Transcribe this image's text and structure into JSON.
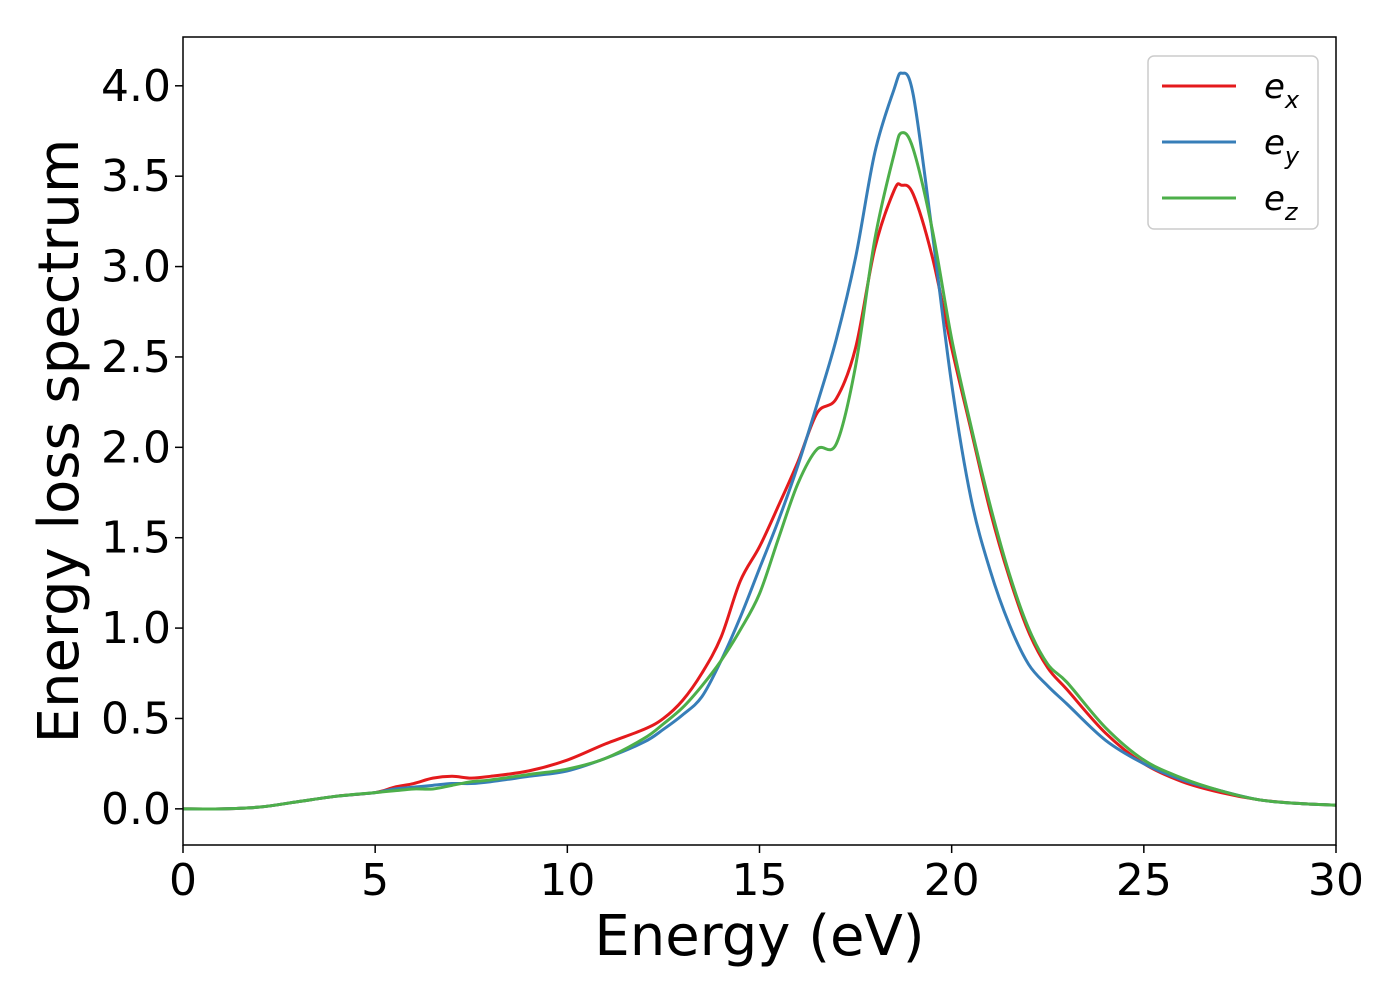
{
  "chart_data": {
    "type": "line",
    "xlabel": "Energy (eV)",
    "ylabel": "Energy loss spectrum",
    "xlim": [
      0,
      30
    ],
    "ylim": [
      -0.2,
      4.27
    ],
    "xticks": [
      0,
      5,
      10,
      15,
      20,
      25,
      30
    ],
    "xtick_labels": [
      "0",
      "5",
      "10",
      "15",
      "20",
      "25",
      "30"
    ],
    "yticks": [
      0.0,
      0.5,
      1.0,
      1.5,
      2.0,
      2.5,
      3.0,
      3.5,
      4.0
    ],
    "ytick_labels": [
      "0.0",
      "0.5",
      "1.0",
      "1.5",
      "2.0",
      "2.5",
      "3.0",
      "3.5",
      "4.0"
    ],
    "grid": false,
    "legend_position": "top-right",
    "x": [
      0,
      1,
      2,
      3,
      4,
      5,
      5.5,
      6,
      6.5,
      7,
      7.5,
      8,
      9,
      10,
      11,
      12,
      12.5,
      13,
      13.5,
      14,
      14.5,
      15,
      15.5,
      16,
      16.5,
      17,
      17.5,
      18,
      18.5,
      18.7,
      19,
      19.5,
      20,
      20.5,
      21,
      21.5,
      22,
      22.5,
      23,
      24,
      25,
      26,
      27,
      28,
      29,
      30
    ],
    "series": [
      {
        "name": "e",
        "subscript": "x",
        "color": "#e41a1c",
        "values": [
          0.0,
          0.0,
          0.01,
          0.04,
          0.07,
          0.09,
          0.12,
          0.14,
          0.17,
          0.18,
          0.17,
          0.18,
          0.21,
          0.27,
          0.36,
          0.44,
          0.5,
          0.6,
          0.75,
          0.95,
          1.26,
          1.45,
          1.68,
          1.92,
          2.19,
          2.27,
          2.55,
          3.1,
          3.42,
          3.45,
          3.4,
          3.05,
          2.55,
          2.1,
          1.65,
          1.28,
          0.98,
          0.78,
          0.66,
          0.42,
          0.25,
          0.15,
          0.09,
          0.05,
          0.03,
          0.02
        ]
      },
      {
        "name": "e",
        "subscript": "y",
        "color": "#377eb8",
        "values": [
          0.0,
          0.0,
          0.01,
          0.04,
          0.07,
          0.09,
          0.11,
          0.12,
          0.13,
          0.14,
          0.14,
          0.15,
          0.18,
          0.21,
          0.28,
          0.37,
          0.44,
          0.52,
          0.62,
          0.82,
          1.06,
          1.33,
          1.6,
          1.9,
          2.24,
          2.6,
          3.05,
          3.63,
          3.98,
          4.07,
          3.95,
          3.18,
          2.35,
          1.72,
          1.32,
          1.02,
          0.8,
          0.68,
          0.58,
          0.38,
          0.25,
          0.16,
          0.1,
          0.05,
          0.03,
          0.02
        ]
      },
      {
        "name": "e",
        "subscript": "z",
        "color": "#4daf4a",
        "values": [
          0.0,
          0.0,
          0.01,
          0.04,
          0.07,
          0.09,
          0.1,
          0.11,
          0.11,
          0.13,
          0.15,
          0.16,
          0.19,
          0.22,
          0.28,
          0.39,
          0.47,
          0.56,
          0.68,
          0.82,
          0.99,
          1.19,
          1.5,
          1.8,
          1.99,
          2.02,
          2.45,
          3.15,
          3.62,
          3.74,
          3.65,
          3.2,
          2.6,
          2.12,
          1.68,
          1.3,
          1.0,
          0.8,
          0.7,
          0.45,
          0.27,
          0.17,
          0.1,
          0.05,
          0.03,
          0.02
        ]
      }
    ]
  }
}
